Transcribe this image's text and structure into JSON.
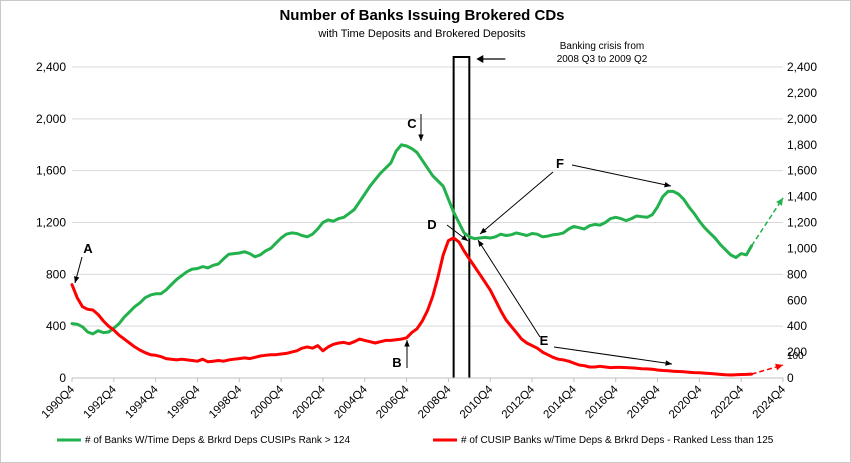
{
  "chart_data": {
    "type": "line",
    "title": "Number of Banks Issuing Brokered CDs",
    "subtitle": "with Time Deposits and Brokered Deposits",
    "x_tick_labels": [
      "1990Q4",
      "1992Q4",
      "1994Q4",
      "1996Q4",
      "1998Q4",
      "2000Q4",
      "2002Q4",
      "2004Q4",
      "2006Q4",
      "2008Q4",
      "2010Q4",
      "2012Q4",
      "2014Q4",
      "2016Q4",
      "2018Q4",
      "2020Q4",
      "2022Q4",
      "2024Q4"
    ],
    "xlim": [
      1990.75,
      2024.75
    ],
    "left_axis": {
      "ticks": [
        "0",
        "400",
        "800",
        "1,200",
        "1,600",
        "2,000",
        "2,400"
      ],
      "values": [
        0,
        400,
        800,
        1200,
        1600,
        2000,
        2400
      ],
      "ylim": [
        0,
        2400
      ]
    },
    "right_axis": {
      "ticks": [
        "0",
        "200",
        "400",
        "600",
        "800",
        "1,000",
        "1,200",
        "1,400",
        "1,600",
        "1,800",
        "2,000",
        "2,200",
        "2,400"
      ],
      "values": [
        0,
        200,
        400,
        600,
        800,
        1000,
        1200,
        1400,
        1600,
        1800,
        2000,
        2200,
        2400
      ],
      "ylim": [
        0,
        2400
      ]
    },
    "grid": "horizontal",
    "legend_position": "bottom",
    "series": [
      {
        "name": "# of Banks W/Time Deps & Brkrd Deps CUSIPs Rank > 124",
        "color": "#22b14c",
        "axis": "left",
        "points": [
          [
            1990.75,
            420
          ],
          [
            1991.0,
            415
          ],
          [
            1991.25,
            395
          ],
          [
            1991.5,
            355
          ],
          [
            1991.75,
            340
          ],
          [
            1992.0,
            365
          ],
          [
            1992.25,
            350
          ],
          [
            1992.5,
            355
          ],
          [
            1992.75,
            385
          ],
          [
            1993.0,
            420
          ],
          [
            1993.25,
            470
          ],
          [
            1993.5,
            510
          ],
          [
            1993.75,
            550
          ],
          [
            1994.0,
            580
          ],
          [
            1994.25,
            620
          ],
          [
            1994.5,
            640
          ],
          [
            1994.75,
            650
          ],
          [
            1995.0,
            650
          ],
          [
            1995.25,
            680
          ],
          [
            1995.5,
            720
          ],
          [
            1995.75,
            760
          ],
          [
            1996.0,
            790
          ],
          [
            1996.25,
            820
          ],
          [
            1996.5,
            840
          ],
          [
            1996.75,
            845
          ],
          [
            1997.0,
            860
          ],
          [
            1997.25,
            850
          ],
          [
            1997.5,
            870
          ],
          [
            1997.75,
            880
          ],
          [
            1998.0,
            920
          ],
          [
            1998.25,
            955
          ],
          [
            1998.5,
            960
          ],
          [
            1998.75,
            965
          ],
          [
            1999.0,
            975
          ],
          [
            1999.25,
            960
          ],
          [
            1999.5,
            935
          ],
          [
            1999.75,
            950
          ],
          [
            2000.0,
            980
          ],
          [
            2000.25,
            1000
          ],
          [
            2000.5,
            1040
          ],
          [
            2000.75,
            1080
          ],
          [
            2001.0,
            1110
          ],
          [
            2001.25,
            1120
          ],
          [
            2001.5,
            1115
          ],
          [
            2001.75,
            1100
          ],
          [
            2002.0,
            1090
          ],
          [
            2002.25,
            1110
          ],
          [
            2002.5,
            1150
          ],
          [
            2002.75,
            1200
          ],
          [
            2003.0,
            1220
          ],
          [
            2003.25,
            1210
          ],
          [
            2003.5,
            1230
          ],
          [
            2003.75,
            1240
          ],
          [
            2004.0,
            1270
          ],
          [
            2004.25,
            1300
          ],
          [
            2004.5,
            1360
          ],
          [
            2004.75,
            1420
          ],
          [
            2005.0,
            1480
          ],
          [
            2005.25,
            1530
          ],
          [
            2005.5,
            1580
          ],
          [
            2005.75,
            1620
          ],
          [
            2006.0,
            1660
          ],
          [
            2006.25,
            1750
          ],
          [
            2006.5,
            1800
          ],
          [
            2006.75,
            1790
          ],
          [
            2007.0,
            1770
          ],
          [
            2007.25,
            1740
          ],
          [
            2007.5,
            1680
          ],
          [
            2007.75,
            1620
          ],
          [
            2008.0,
            1560
          ],
          [
            2008.25,
            1520
          ],
          [
            2008.5,
            1480
          ],
          [
            2008.75,
            1380
          ],
          [
            2009.0,
            1280
          ],
          [
            2009.25,
            1200
          ],
          [
            2009.5,
            1120
          ],
          [
            2009.75,
            1090
          ],
          [
            2010.0,
            1075
          ],
          [
            2010.25,
            1080
          ],
          [
            2010.5,
            1085
          ],
          [
            2010.75,
            1080
          ],
          [
            2011.0,
            1090
          ],
          [
            2011.25,
            1110
          ],
          [
            2011.5,
            1100
          ],
          [
            2011.75,
            1105
          ],
          [
            2012.0,
            1120
          ],
          [
            2012.25,
            1110
          ],
          [
            2012.5,
            1100
          ],
          [
            2012.75,
            1115
          ],
          [
            2013.0,
            1110
          ],
          [
            2013.25,
            1090
          ],
          [
            2013.5,
            1095
          ],
          [
            2013.75,
            1105
          ],
          [
            2014.0,
            1110
          ],
          [
            2014.25,
            1120
          ],
          [
            2014.5,
            1150
          ],
          [
            2014.75,
            1170
          ],
          [
            2015.0,
            1160
          ],
          [
            2015.25,
            1150
          ],
          [
            2015.5,
            1175
          ],
          [
            2015.75,
            1185
          ],
          [
            2016.0,
            1180
          ],
          [
            2016.25,
            1200
          ],
          [
            2016.5,
            1230
          ],
          [
            2016.75,
            1240
          ],
          [
            2017.0,
            1230
          ],
          [
            2017.25,
            1215
          ],
          [
            2017.5,
            1230
          ],
          [
            2017.75,
            1250
          ],
          [
            2018.0,
            1245
          ],
          [
            2018.25,
            1240
          ],
          [
            2018.5,
            1260
          ],
          [
            2018.75,
            1320
          ],
          [
            2019.0,
            1400
          ],
          [
            2019.25,
            1440
          ],
          [
            2019.5,
            1440
          ],
          [
            2019.75,
            1420
          ],
          [
            2020.0,
            1380
          ],
          [
            2020.25,
            1320
          ],
          [
            2020.5,
            1270
          ],
          [
            2020.75,
            1210
          ],
          [
            2021.0,
            1160
          ],
          [
            2021.25,
            1120
          ],
          [
            2021.5,
            1080
          ],
          [
            2021.75,
            1030
          ],
          [
            2022.0,
            990
          ],
          [
            2022.25,
            950
          ],
          [
            2022.5,
            930
          ],
          [
            2022.75,
            960
          ],
          [
            2023.0,
            950
          ],
          [
            2023.25,
            1020
          ]
        ]
      },
      {
        "name": "# of CUSIP Banks w/Time Deps & Brkrd Deps -  Ranked Less than 125",
        "color": "#ff0000",
        "axis": "right",
        "points": [
          [
            1990.75,
            720
          ],
          [
            1991.0,
            620
          ],
          [
            1991.25,
            550
          ],
          [
            1991.5,
            530
          ],
          [
            1991.75,
            525
          ],
          [
            1992.0,
            490
          ],
          [
            1992.25,
            440
          ],
          [
            1992.5,
            400
          ],
          [
            1992.75,
            370
          ],
          [
            1993.0,
            330
          ],
          [
            1993.25,
            300
          ],
          [
            1993.5,
            270
          ],
          [
            1993.75,
            240
          ],
          [
            1994.0,
            215
          ],
          [
            1994.25,
            195
          ],
          [
            1994.5,
            180
          ],
          [
            1994.75,
            175
          ],
          [
            1995.0,
            165
          ],
          [
            1995.25,
            150
          ],
          [
            1995.5,
            145
          ],
          [
            1995.75,
            140
          ],
          [
            1996.0,
            145
          ],
          [
            1996.25,
            140
          ],
          [
            1996.5,
            135
          ],
          [
            1996.75,
            130
          ],
          [
            1997.0,
            145
          ],
          [
            1997.25,
            125
          ],
          [
            1997.5,
            130
          ],
          [
            1997.75,
            135
          ],
          [
            1998.0,
            130
          ],
          [
            1998.25,
            140
          ],
          [
            1998.5,
            145
          ],
          [
            1998.75,
            150
          ],
          [
            1999.0,
            155
          ],
          [
            1999.25,
            150
          ],
          [
            1999.5,
            160
          ],
          [
            1999.75,
            170
          ],
          [
            2000.0,
            175
          ],
          [
            2000.25,
            180
          ],
          [
            2000.5,
            180
          ],
          [
            2000.75,
            185
          ],
          [
            2001.0,
            190
          ],
          [
            2001.25,
            200
          ],
          [
            2001.5,
            210
          ],
          [
            2001.75,
            230
          ],
          [
            2002.0,
            240
          ],
          [
            2002.25,
            230
          ],
          [
            2002.5,
            250
          ],
          [
            2002.75,
            210
          ],
          [
            2003.0,
            240
          ],
          [
            2003.25,
            260
          ],
          [
            2003.5,
            270
          ],
          [
            2003.75,
            275
          ],
          [
            2004.0,
            265
          ],
          [
            2004.25,
            280
          ],
          [
            2004.5,
            300
          ],
          [
            2004.75,
            290
          ],
          [
            2005.0,
            280
          ],
          [
            2005.25,
            270
          ],
          [
            2005.5,
            280
          ],
          [
            2005.75,
            290
          ],
          [
            2006.0,
            290
          ],
          [
            2006.25,
            295
          ],
          [
            2006.5,
            300
          ],
          [
            2006.75,
            310
          ],
          [
            2007.0,
            350
          ],
          [
            2007.25,
            380
          ],
          [
            2007.5,
            440
          ],
          [
            2007.75,
            520
          ],
          [
            2008.0,
            630
          ],
          [
            2008.25,
            780
          ],
          [
            2008.5,
            950
          ],
          [
            2008.75,
            1060
          ],
          [
            2009.0,
            1080
          ],
          [
            2009.25,
            1050
          ],
          [
            2009.5,
            980
          ],
          [
            2009.75,
            920
          ],
          [
            2010.0,
            860
          ],
          [
            2010.25,
            800
          ],
          [
            2010.5,
            740
          ],
          [
            2010.75,
            680
          ],
          [
            2011.0,
            600
          ],
          [
            2011.25,
            520
          ],
          [
            2011.5,
            450
          ],
          [
            2011.75,
            400
          ],
          [
            2012.0,
            350
          ],
          [
            2012.25,
            300
          ],
          [
            2012.5,
            270
          ],
          [
            2012.75,
            250
          ],
          [
            2013.0,
            230
          ],
          [
            2013.25,
            200
          ],
          [
            2013.5,
            180
          ],
          [
            2013.75,
            160
          ],
          [
            2014.0,
            145
          ],
          [
            2014.25,
            140
          ],
          [
            2014.5,
            130
          ],
          [
            2014.75,
            115
          ],
          [
            2015.0,
            100
          ],
          [
            2015.25,
            95
          ],
          [
            2015.5,
            85
          ],
          [
            2015.75,
            85
          ],
          [
            2016.0,
            90
          ],
          [
            2016.25,
            85
          ],
          [
            2016.5,
            80
          ],
          [
            2016.75,
            82
          ],
          [
            2017.0,
            82
          ],
          [
            2017.25,
            80
          ],
          [
            2017.5,
            78
          ],
          [
            2017.75,
            76
          ],
          [
            2018.0,
            72
          ],
          [
            2018.25,
            70
          ],
          [
            2018.5,
            68
          ],
          [
            2018.75,
            62
          ],
          [
            2019.0,
            58
          ],
          [
            2019.25,
            56
          ],
          [
            2019.5,
            52
          ],
          [
            2019.75,
            50
          ],
          [
            2020.0,
            48
          ],
          [
            2020.25,
            45
          ],
          [
            2020.5,
            42
          ],
          [
            2020.75,
            40
          ],
          [
            2021.0,
            38
          ],
          [
            2021.25,
            35
          ],
          [
            2021.5,
            32
          ],
          [
            2021.75,
            28
          ],
          [
            2022.0,
            25
          ],
          [
            2022.25,
            23
          ],
          [
            2022.5,
            25
          ],
          [
            2022.75,
            27
          ],
          [
            2023.0,
            28
          ],
          [
            2023.25,
            30
          ]
        ]
      }
    ],
    "projections": [
      {
        "series": "green",
        "color": "#22b14c",
        "axis": "left",
        "from": [
          2023.25,
          1020
        ],
        "to": [
          2024.75,
          1390
        ]
      },
      {
        "series": "red",
        "color": "#ff0000",
        "axis": "right",
        "from": [
          2023.25,
          30
        ],
        "to": [
          2024.75,
          100
        ],
        "label": "100"
      }
    ],
    "crisis_band": {
      "from": 2009.0,
      "to": 2009.75,
      "label": [
        "Banking crisis from",
        "2008 Q3 to 2009 Q2"
      ]
    },
    "annotations": [
      {
        "letter": "A",
        "x": 1990.75,
        "y_left": 720
      },
      {
        "letter": "B",
        "x": 2005.8,
        "y_left": 120
      },
      {
        "letter": "C",
        "x": 2006.5,
        "y_left": 1800
      },
      {
        "letter": "D",
        "x": 2008.8,
        "y_left": 1080
      },
      {
        "letter": "E",
        "x": 2016.0,
        "y_left": 280
      },
      {
        "letter": "F",
        "x": 2015.0,
        "y_left": 1620
      }
    ]
  }
}
